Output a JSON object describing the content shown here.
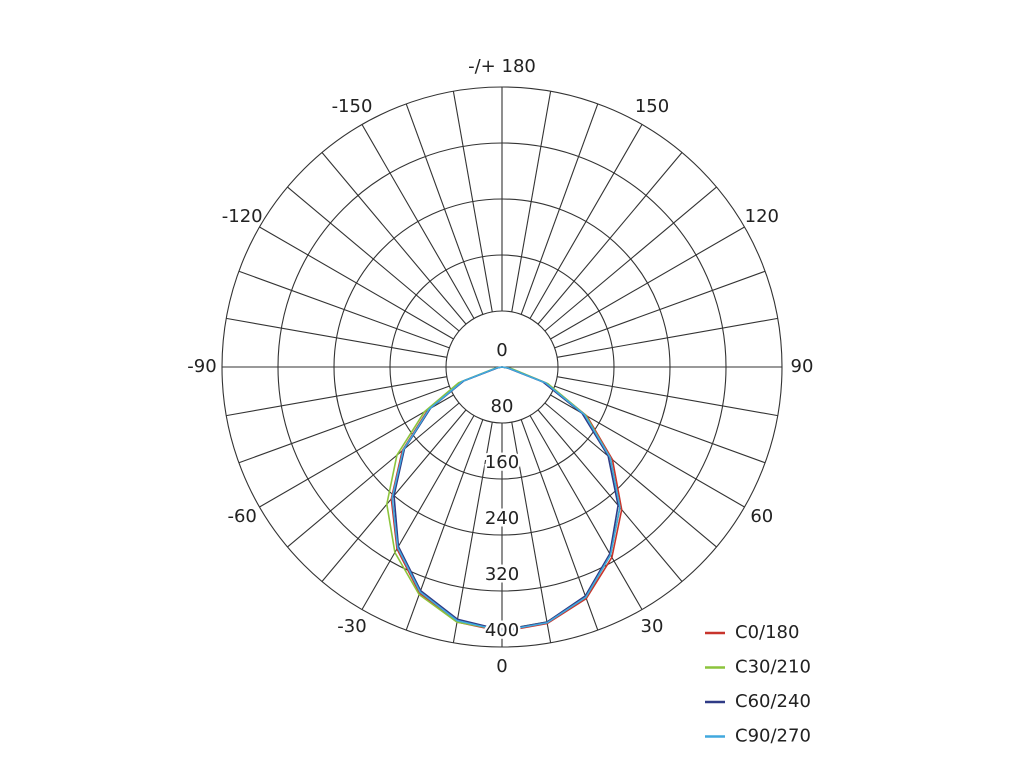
{
  "chart_data": {
    "type": "polar",
    "x": [
      -90,
      -80,
      -70,
      -60,
      -50,
      -40,
      -30,
      -20,
      -10,
      0,
      10,
      20,
      30,
      40,
      50,
      60,
      70,
      80,
      90
    ],
    "series": [
      {
        "name": "C0/180",
        "color": "#c8342c",
        "values": [
          0,
          8,
          62,
          122,
          186,
          246,
          300,
          344,
          370,
          378,
          372,
          352,
          314,
          266,
          206,
          140,
          68,
          12,
          0
        ]
      },
      {
        "name": "C30/210",
        "color": "#8cc43c",
        "values": [
          0,
          10,
          66,
          128,
          196,
          256,
          306,
          346,
          370,
          376,
          370,
          350,
          310,
          262,
          202,
          138,
          70,
          14,
          0
        ]
      },
      {
        "name": "C60/240",
        "color": "#2f3b86",
        "values": [
          0,
          6,
          58,
          118,
          182,
          240,
          296,
          340,
          366,
          376,
          370,
          348,
          308,
          258,
          198,
          132,
          62,
          8,
          0
        ]
      },
      {
        "name": "C90/270",
        "color": "#40a8de",
        "values": [
          0,
          8,
          60,
          120,
          184,
          244,
          298,
          342,
          368,
          377,
          371,
          350,
          310,
          262,
          202,
          136,
          66,
          10,
          0
        ]
      }
    ],
    "ylim": [
      0,
      400
    ],
    "yticks": [
      0,
      80,
      160,
      240,
      320,
      400
    ],
    "xticks": [
      -150,
      -120,
      -90,
      -60,
      -30,
      0,
      30,
      60,
      90,
      120,
      150,
      {
        "value": 180,
        "label": "-/+ 180"
      }
    ],
    "legend": "lower right"
  }
}
